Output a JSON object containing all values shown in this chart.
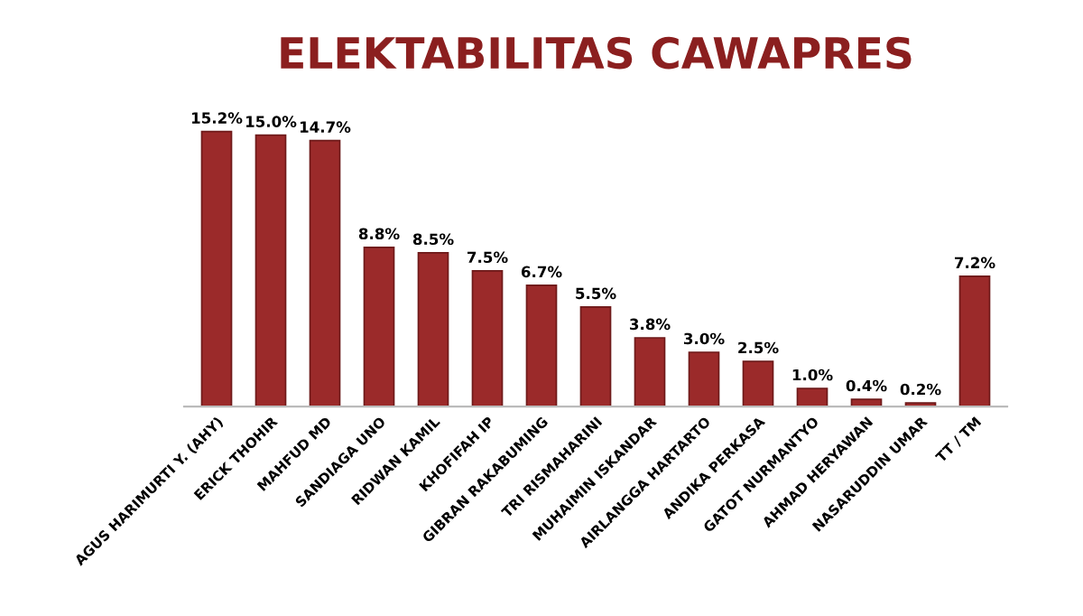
{
  "chart_data": {
    "type": "bar",
    "title": "ELEKTABILITAS CAWAPRES",
    "categories": [
      "AGUS HARIMURTI Y. (AHY)",
      "ERICK THOHIR",
      "MAHFUD MD",
      "SANDIAGA UNO",
      "RIDWAN KAMIL",
      "KHOFIFAH IP",
      "GIBRAN RAKABUMING",
      "TRI RISMAHARINI",
      "MUHAIMIN ISKANDAR",
      "AIRLANGGA HARTARTO",
      "ANDIKA PERKASA",
      "GATOT NURMANTYO",
      "AHMAD HERYAWAN",
      "NASARUDDIN UMAR",
      "TT / TM"
    ],
    "values": [
      15.2,
      15.0,
      14.7,
      8.8,
      8.5,
      7.5,
      6.7,
      5.5,
      3.8,
      3.0,
      2.5,
      1.0,
      0.4,
      0.2,
      7.2
    ],
    "value_labels": [
      "15.2%",
      "15.0%",
      "14.7%",
      "8.8%",
      "8.5%",
      "7.5%",
      "6.7%",
      "5.5%",
      "3.8%",
      "3.0%",
      "2.5%",
      "1.0%",
      "0.4%",
      "0.2%",
      "7.2%"
    ],
    "color": "#9b2a2a",
    "grid": false
  }
}
